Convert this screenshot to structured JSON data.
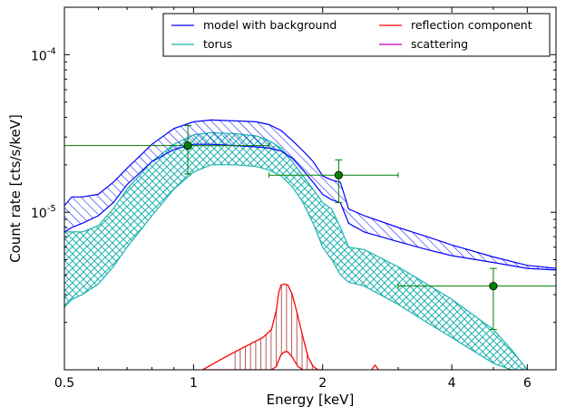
{
  "chart_data": {
    "type": "line",
    "xlabel": "Energy [keV]",
    "ylabel": "Count rate [cts/s/keV]",
    "xscale": "log",
    "yscale": "log",
    "xlim": [
      0.5,
      7.0
    ],
    "ylim": [
      1e-06,
      0.0002
    ],
    "x_ticks": [
      {
        "value": 0.5,
        "label": "0.5"
      },
      {
        "value": 1,
        "label": "1"
      },
      {
        "value": 2,
        "label": "2"
      },
      {
        "value": 4,
        "label": "4"
      },
      {
        "value": 6,
        "label": "6"
      }
    ],
    "y_ticks": [
      {
        "value": 1e-05,
        "base": "10",
        "exponent": "-5"
      },
      {
        "value": 0.0001,
        "base": "10",
        "exponent": "-4"
      }
    ],
    "legend": {
      "placement": "top-right",
      "entries": [
        {
          "label": "model with background",
          "color": "#0000ff"
        },
        {
          "label": "torus",
          "color": "#20b2b2"
        },
        {
          "label": "reflection component",
          "color": "#ff0000"
        },
        {
          "label": "scattering",
          "color": "#bf00bf"
        }
      ]
    },
    "series": [
      {
        "name": "model with background",
        "color": "#0000ff",
        "x": [
          0.5,
          0.52,
          0.55,
          0.6,
          0.65,
          0.7,
          0.8,
          0.9,
          1.0,
          1.1,
          1.25,
          1.4,
          1.5,
          1.6,
          1.7,
          1.8,
          1.9,
          2.0,
          2.1,
          2.2,
          2.3,
          2.5,
          3.0,
          3.5,
          4.0,
          5.0,
          6.0,
          7.0
        ],
        "upper": [
          1.1e-05,
          1.25e-05,
          1.25e-05,
          1.3e-05,
          1.55e-05,
          1.9e-05,
          2.7e-05,
          3.4e-05,
          3.75e-05,
          3.85e-05,
          3.8e-05,
          3.75e-05,
          3.6e-05,
          3.3e-05,
          2.85e-05,
          2.45e-05,
          2.1e-05,
          1.7e-05,
          1.6e-05,
          1.55e-05,
          1.05e-05,
          9.5e-06,
          8e-06,
          7e-06,
          6.2e-06,
          5.2e-06,
          4.6e-06,
          4.4e-06
        ],
        "lower": [
          7.5e-06,
          8e-06,
          8.5e-06,
          9.5e-06,
          1.15e-05,
          1.5e-05,
          2.1e-05,
          2.5e-05,
          2.7e-05,
          2.7e-05,
          2.65e-05,
          2.6e-05,
          2.55e-05,
          2.45e-05,
          2.2e-05,
          1.85e-05,
          1.55e-05,
          1.3e-05,
          1.2e-05,
          1.15e-05,
          8.5e-06,
          7.5e-06,
          6.5e-06,
          5.8e-06,
          5.3e-06,
          4.8e-06,
          4.4e-06,
          4.3e-06
        ]
      },
      {
        "name": "torus",
        "color": "#20b2b2",
        "x": [
          0.5,
          0.52,
          0.55,
          0.6,
          0.65,
          0.7,
          0.8,
          0.9,
          1.0,
          1.1,
          1.25,
          1.4,
          1.5,
          1.6,
          1.7,
          1.8,
          1.9,
          2.0,
          2.1,
          2.2,
          2.3,
          2.5,
          3.0,
          3.5,
          4.0,
          5.0,
          5.5,
          6.0
        ],
        "upper": [
          7.5e-06,
          7.5e-06,
          7.5e-06,
          8.2e-06,
          1.05e-05,
          1.4e-05,
          2.1e-05,
          2.7e-05,
          3.1e-05,
          3.2e-05,
          3.15e-05,
          3.05e-05,
          2.85e-05,
          2.55e-05,
          2.1e-05,
          1.7e-05,
          1.4e-05,
          1.15e-05,
          1.05e-05,
          8e-06,
          6e-06,
          5.8e-06,
          4.5e-06,
          3.5e-06,
          2.8e-06,
          1.8e-06,
          1.35e-06,
          1e-06
        ],
        "lower": [
          2.5e-06,
          2.8e-06,
          3e-06,
          3.5e-06,
          4.5e-06,
          6e-06,
          9.5e-06,
          1.4e-05,
          1.8e-05,
          2e-05,
          2e-05,
          1.95e-05,
          1.85e-05,
          1.7e-05,
          1.45e-05,
          1.15e-05,
          8.5e-06,
          6e-06,
          5e-06,
          4e-06,
          3.6e-06,
          3.4e-06,
          2.6e-06,
          2e-06,
          1.6e-06,
          1.1e-06,
          1e-06,
          1e-06
        ]
      },
      {
        "name": "reflection component",
        "color": "#ff0000",
        "x": [
          1.05,
          1.15,
          1.25,
          1.35,
          1.45,
          1.52,
          1.56,
          1.58,
          1.6,
          1.63,
          1.66,
          1.7,
          1.75,
          1.8,
          1.85,
          1.9,
          1.95,
          2.0
        ],
        "upper": [
          1e-06,
          1.15e-06,
          1.3e-06,
          1.45e-06,
          1.6e-06,
          1.8e-06,
          2.4e-06,
          3.1e-06,
          3.45e-06,
          3.5e-06,
          3.45e-06,
          3e-06,
          2.2e-06,
          1.6e-06,
          1.2e-06,
          1.05e-06,
          1e-06,
          1e-06
        ],
        "lower": [
          1e-06,
          1e-06,
          1e-06,
          1e-06,
          1e-06,
          1e-06,
          1.05e-06,
          1.15e-06,
          1.25e-06,
          1.3e-06,
          1.3e-06,
          1.2e-06,
          1.05e-06,
          1e-06,
          1e-06,
          1e-06,
          1e-06,
          1e-06
        ],
        "extra_line": {
          "x": [
            2.6,
            2.65,
            2.7
          ],
          "y": [
            1e-06,
            1.07e-06,
            1e-06
          ]
        }
      },
      {
        "name": "scattering",
        "color": "#bf00bf",
        "x": [],
        "upper": [],
        "lower": []
      }
    ],
    "data_points": {
      "color": "#008000",
      "points": [
        {
          "x": 0.97,
          "y": 2.65e-05,
          "xlo": 0.5,
          "xhi": 1.5,
          "ylo": 1.75e-05,
          "yhi": 3.55e-05
        },
        {
          "x": 2.18,
          "y": 1.72e-05,
          "xlo": 1.5,
          "xhi": 3.0,
          "ylo": 1.15e-05,
          "yhi": 2.15e-05
        },
        {
          "x": 5.0,
          "y": 3.4e-06,
          "xlo": 3.0,
          "xhi": 7.0,
          "ylo": 1.8e-06,
          "yhi": 4.4e-06
        }
      ]
    }
  }
}
